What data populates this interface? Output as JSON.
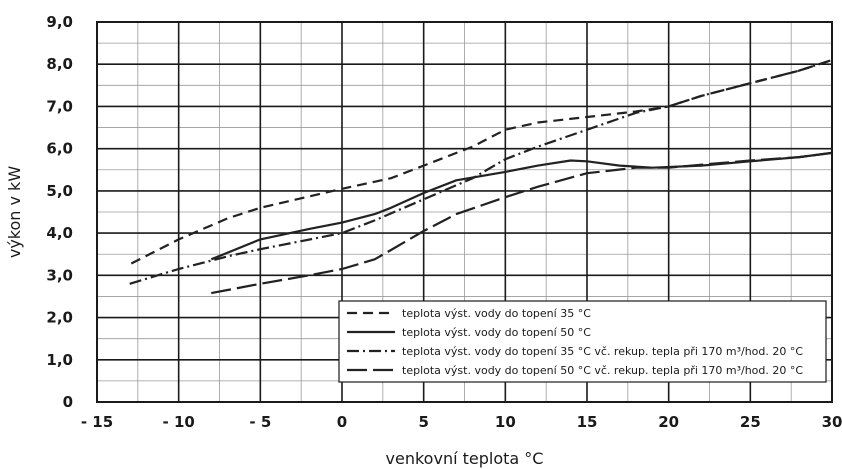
{
  "chart_data": {
    "type": "line",
    "title": "",
    "xlabel": "venkovní teplota °C",
    "ylabel": "výkon v kW",
    "xlim": [
      -15,
      30
    ],
    "ylim": [
      0,
      9
    ],
    "grid": true,
    "x_ticks": [
      "- 15",
      "- 10",
      "- 5",
      "0",
      "5",
      "10",
      "15",
      "20",
      "25",
      "30"
    ],
    "y_ticks": [
      "0",
      "1,0",
      "2,0",
      "3,0",
      "4,0",
      "5,0",
      "6,0",
      "7,0",
      "8,0",
      "9,0"
    ],
    "legend_position": "bottom-right",
    "series": [
      {
        "name": "teplota výst. vody do topení 35 °C",
        "style": "dashed",
        "color": "#222222",
        "points": [
          [
            -12.9,
            3.28
          ],
          [
            -10,
            3.85
          ],
          [
            -7,
            4.35
          ],
          [
            -5,
            4.6
          ],
          [
            0,
            5.05
          ],
          [
            3,
            5.3
          ],
          [
            5,
            5.6
          ],
          [
            8,
            6.05
          ],
          [
            10,
            6.45
          ],
          [
            12,
            6.62
          ],
          [
            15,
            6.75
          ],
          [
            18,
            6.88
          ],
          [
            20,
            7.0
          ],
          [
            22,
            7.25
          ],
          [
            25,
            7.55
          ],
          [
            28,
            7.85
          ],
          [
            30,
            8.1
          ]
        ]
      },
      {
        "name": "teplota výst. vody do topení 50 °C",
        "style": "solid",
        "color": "#222222",
        "points": [
          [
            -8,
            3.38
          ],
          [
            -5,
            3.85
          ],
          [
            -2,
            4.1
          ],
          [
            0,
            4.25
          ],
          [
            2,
            4.45
          ],
          [
            3,
            4.6
          ],
          [
            5,
            4.95
          ],
          [
            7,
            5.25
          ],
          [
            10,
            5.45
          ],
          [
            12,
            5.6
          ],
          [
            14,
            5.72
          ],
          [
            15,
            5.7
          ],
          [
            17,
            5.6
          ],
          [
            19,
            5.55
          ],
          [
            22,
            5.6
          ],
          [
            25,
            5.7
          ],
          [
            28,
            5.8
          ],
          [
            30,
            5.9
          ]
        ]
      },
      {
        "name": "teplota výst. vody do topení 35 °C vč. rekup. tepla při 170 m³/hod. 20 °C",
        "style": "dash-dot",
        "color": "#222222",
        "points": [
          [
            -13,
            2.8
          ],
          [
            -10,
            3.15
          ],
          [
            -7,
            3.45
          ],
          [
            -5,
            3.62
          ],
          [
            0,
            4.0
          ],
          [
            2,
            4.3
          ],
          [
            5,
            4.8
          ],
          [
            8,
            5.3
          ],
          [
            10,
            5.75
          ],
          [
            12,
            6.05
          ],
          [
            15,
            6.45
          ],
          [
            18,
            6.85
          ],
          [
            20,
            7.0
          ],
          [
            22,
            7.25
          ],
          [
            25,
            7.55
          ],
          [
            28,
            7.85
          ],
          [
            30,
            8.1
          ]
        ]
      },
      {
        "name": "teplota výst. vody do topení 50 °C vč. rekup. tepla při 170 m³/hod. 20 °C",
        "style": "long-dash",
        "color": "#222222",
        "points": [
          [
            -8,
            2.58
          ],
          [
            -5,
            2.8
          ],
          [
            -2,
            3.0
          ],
          [
            0,
            3.15
          ],
          [
            2,
            3.38
          ],
          [
            3,
            3.6
          ],
          [
            5,
            4.05
          ],
          [
            7,
            4.45
          ],
          [
            10,
            4.85
          ],
          [
            12,
            5.1
          ],
          [
            15,
            5.42
          ],
          [
            18,
            5.55
          ],
          [
            20,
            5.55
          ],
          [
            22,
            5.62
          ],
          [
            25,
            5.72
          ],
          [
            28,
            5.8
          ],
          [
            30,
            5.9
          ]
        ]
      }
    ]
  }
}
